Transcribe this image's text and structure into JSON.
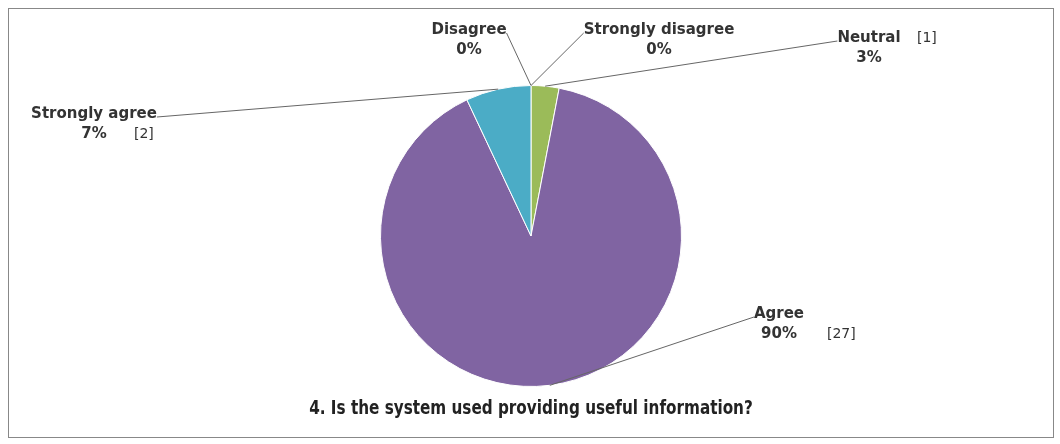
{
  "chart_data": {
    "type": "pie",
    "title": "4. Is the system used providing useful information?",
    "categories": [
      "Strongly disagree",
      "Disagree",
      "Neutral",
      "Agree",
      "Strongly agree"
    ],
    "values": [
      0,
      0,
      3,
      90,
      7
    ],
    "colors": [
      "#4f81bd",
      "#c0504d",
      "#9bbb59",
      "#8064a2",
      "#4bacc6"
    ],
    "value_labels": [
      "0%",
      "0%",
      "3%",
      "90%",
      "7%"
    ],
    "annotations": [
      {
        "text": "[1]",
        "x": "Neutral"
      },
      {
        "text": "[27]",
        "x": "Agree"
      },
      {
        "text": "[2]",
        "x": "Strongly agree"
      }
    ],
    "legend": false
  }
}
